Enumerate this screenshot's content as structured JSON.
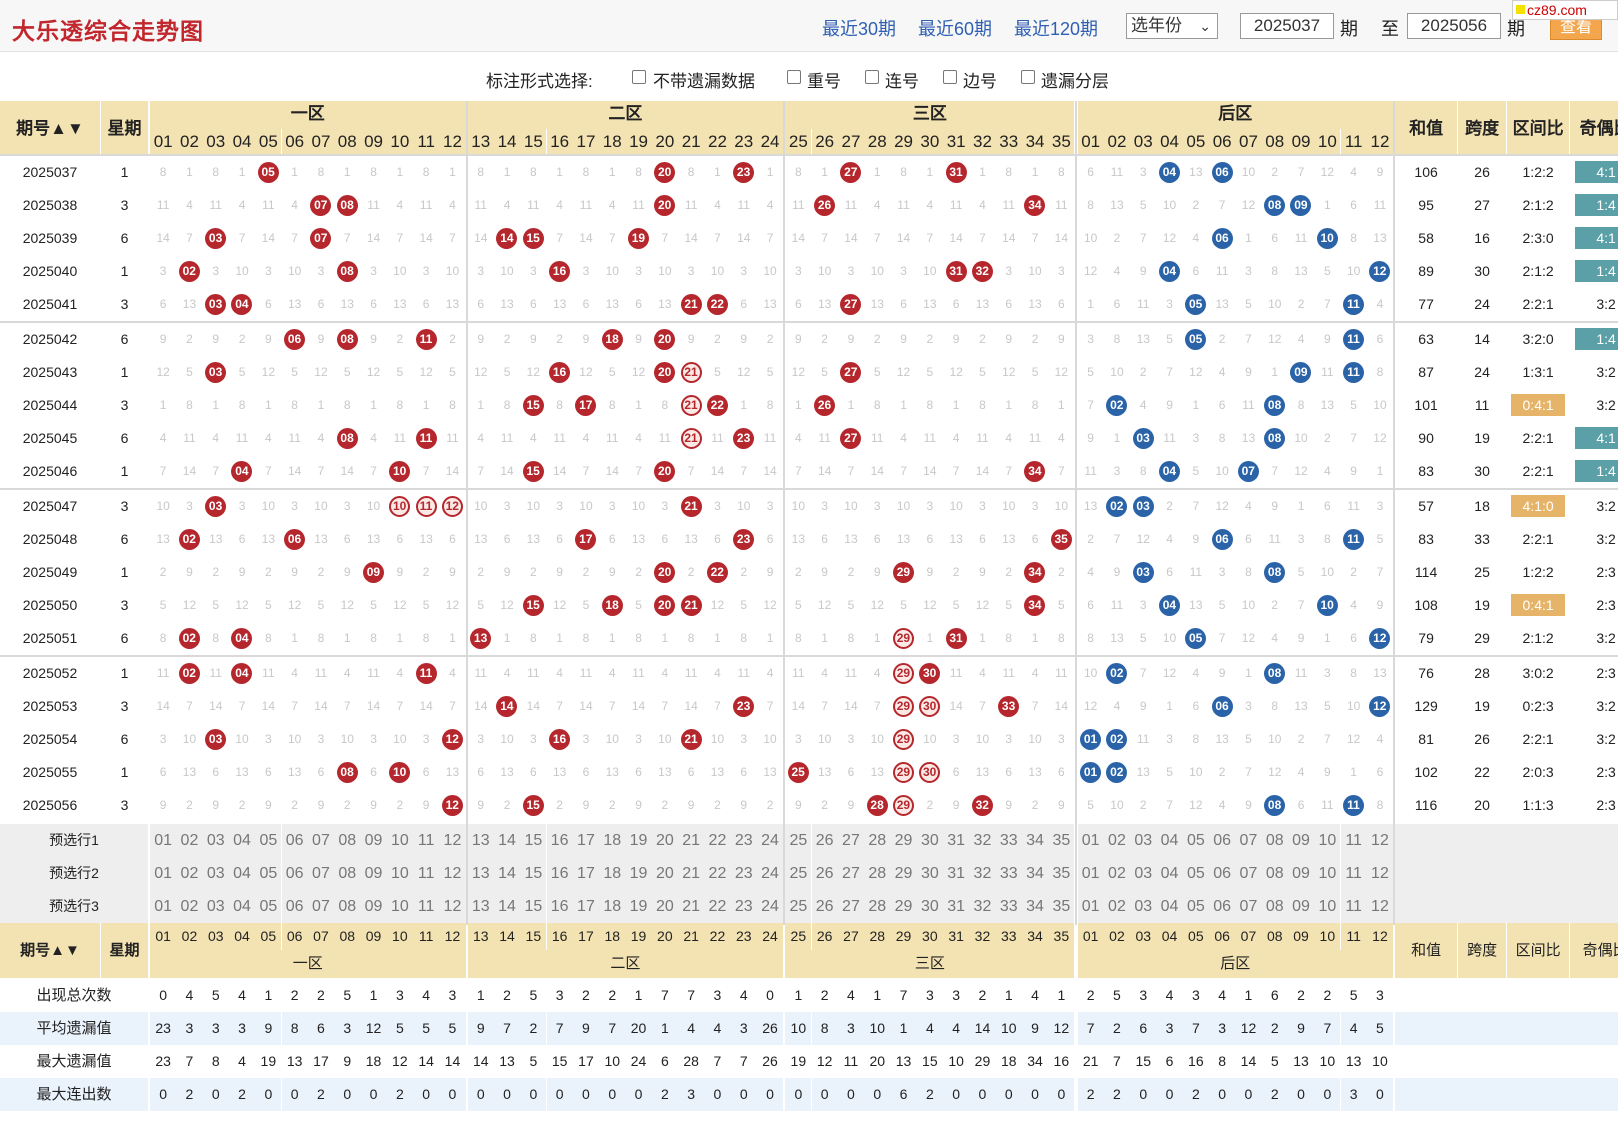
{
  "app": {
    "title": "大乐透综合走势图",
    "links": [
      "最近30期",
      "最近60期",
      "最近120期"
    ],
    "year_select": "选年份",
    "period_from": "2025037",
    "period_label_1": "期",
    "to_label": "至",
    "period_to": "2025056",
    "period_label_2": "期",
    "query": "查看",
    "watermark": "cz89.com"
  },
  "options": {
    "label": "标注形式选择:",
    "items": [
      "不带遗漏数据",
      "重号",
      "连号",
      "边号",
      "遗漏分层"
    ]
  },
  "header": {
    "period": "期号",
    "week": "星期",
    "zones": [
      "一区",
      "二区",
      "三区",
      "后区"
    ],
    "sum": "和值",
    "span": "跨度",
    "ratio": "区间比",
    "oddeven": "奇偶比"
  },
  "front_numbers": [
    "01",
    "02",
    "03",
    "04",
    "05",
    "06",
    "07",
    "08",
    "09",
    "10",
    "11",
    "12",
    "13",
    "14",
    "15",
    "16",
    "17",
    "18",
    "19",
    "20",
    "21",
    "22",
    "23",
    "24",
    "25",
    "26",
    "27",
    "28",
    "29",
    "30",
    "31",
    "32",
    "33",
    "34",
    "35"
  ],
  "back_numbers": [
    "01",
    "02",
    "03",
    "04",
    "05",
    "06",
    "07",
    "08",
    "09",
    "10",
    "11",
    "12"
  ],
  "rows": [
    {
      "period": "2025037",
      "week": "1",
      "sum": "106",
      "span": "26",
      "ratio": "1:2:2",
      "oe": "4:1",
      "oe_hl": true,
      "ratio_hl": false,
      "front": [
        5,
        20,
        23,
        27,
        31
      ],
      "back": [
        4,
        6
      ],
      "ring": []
    },
    {
      "period": "2025038",
      "week": "3",
      "sum": "95",
      "span": "27",
      "ratio": "2:1:2",
      "oe": "1:4",
      "oe_hl": true,
      "ratio_hl": false,
      "front": [
        7,
        8,
        20,
        26,
        34
      ],
      "back": [
        8,
        9
      ],
      "ring": []
    },
    {
      "period": "2025039",
      "week": "6",
      "sum": "58",
      "span": "16",
      "ratio": "2:3:0",
      "oe": "4:1",
      "oe_hl": true,
      "ratio_hl": false,
      "front": [
        3,
        7,
        14,
        15,
        19
      ],
      "back": [
        6,
        10
      ],
      "ring": []
    },
    {
      "period": "2025040",
      "week": "1",
      "sum": "89",
      "span": "30",
      "ratio": "2:1:2",
      "oe": "1:4",
      "oe_hl": true,
      "ratio_hl": false,
      "front": [
        2,
        8,
        16,
        31,
        32
      ],
      "back": [
        4,
        12
      ],
      "ring": []
    },
    {
      "period": "2025041",
      "week": "3",
      "sum": "77",
      "span": "24",
      "ratio": "2:2:1",
      "oe": "3:2",
      "oe_hl": false,
      "ratio_hl": false,
      "front": [
        3,
        4,
        21,
        22,
        27
      ],
      "back": [
        5,
        11
      ],
      "ring": []
    },
    {
      "period": "2025042",
      "week": "6",
      "sum": "63",
      "span": "14",
      "ratio": "3:2:0",
      "oe": "1:4",
      "oe_hl": true,
      "ratio_hl": false,
      "front": [
        6,
        8,
        11,
        18,
        20
      ],
      "back": [
        5,
        11
      ],
      "ring": []
    },
    {
      "period": "2025043",
      "week": "1",
      "sum": "87",
      "span": "24",
      "ratio": "1:3:1",
      "oe": "3:2",
      "oe_hl": false,
      "ratio_hl": false,
      "front": [
        3,
        16,
        20,
        21,
        27
      ],
      "back": [
        9,
        11
      ],
      "ring": [
        21
      ]
    },
    {
      "period": "2025044",
      "week": "3",
      "sum": "101",
      "span": "11",
      "ratio": "0:4:1",
      "oe": "3:2",
      "oe_hl": false,
      "ratio_hl": true,
      "front": [
        15,
        17,
        21,
        22,
        26
      ],
      "back": [
        2,
        8
      ],
      "ring": [
        21
      ]
    },
    {
      "period": "2025045",
      "week": "6",
      "sum": "90",
      "span": "19",
      "ratio": "2:2:1",
      "oe": "4:1",
      "oe_hl": true,
      "ratio_hl": false,
      "front": [
        8,
        11,
        21,
        23,
        27
      ],
      "back": [
        3,
        8
      ],
      "ring": [
        21
      ]
    },
    {
      "period": "2025046",
      "week": "1",
      "sum": "83",
      "span": "30",
      "ratio": "2:2:1",
      "oe": "1:4",
      "oe_hl": true,
      "ratio_hl": false,
      "front": [
        4,
        10,
        15,
        20,
        34
      ],
      "back": [
        4,
        7
      ],
      "ring": []
    },
    {
      "period": "2025047",
      "week": "3",
      "sum": "57",
      "span": "18",
      "ratio": "4:1:0",
      "oe": "3:2",
      "oe_hl": false,
      "ratio_hl": true,
      "front": [
        3,
        10,
        11,
        12,
        21
      ],
      "back": [
        2,
        3
      ],
      "ring": [
        10,
        11,
        12
      ]
    },
    {
      "period": "2025048",
      "week": "6",
      "sum": "83",
      "span": "33",
      "ratio": "2:2:1",
      "oe": "3:2",
      "oe_hl": false,
      "ratio_hl": false,
      "front": [
        2,
        6,
        17,
        23,
        35
      ],
      "back": [
        6,
        11
      ],
      "ring": []
    },
    {
      "period": "2025049",
      "week": "1",
      "sum": "114",
      "span": "25",
      "ratio": "1:2:2",
      "oe": "2:3",
      "oe_hl": false,
      "ratio_hl": false,
      "front": [
        9,
        20,
        22,
        29,
        34
      ],
      "back": [
        3,
        8
      ],
      "ring": []
    },
    {
      "period": "2025050",
      "week": "3",
      "sum": "108",
      "span": "19",
      "ratio": "0:4:1",
      "oe": "2:3",
      "oe_hl": false,
      "ratio_hl": true,
      "front": [
        15,
        18,
        20,
        21,
        34
      ],
      "back": [
        4,
        10
      ],
      "ring": []
    },
    {
      "period": "2025051",
      "week": "6",
      "sum": "79",
      "span": "29",
      "ratio": "2:1:2",
      "oe": "3:2",
      "oe_hl": false,
      "ratio_hl": false,
      "front": [
        2,
        4,
        13,
        29,
        31
      ],
      "back": [
        5,
        12
      ],
      "ring": [
        29
      ]
    },
    {
      "period": "2025052",
      "week": "1",
      "sum": "76",
      "span": "28",
      "ratio": "3:0:2",
      "oe": "2:3",
      "oe_hl": false,
      "ratio_hl": false,
      "front": [
        2,
        4,
        11,
        29,
        30
      ],
      "back": [
        2,
        8
      ],
      "ring": [
        29
      ]
    },
    {
      "period": "2025053",
      "week": "3",
      "sum": "129",
      "span": "19",
      "ratio": "0:2:3",
      "oe": "3:2",
      "oe_hl": false,
      "ratio_hl": false,
      "front": [
        14,
        23,
        29,
        30,
        33
      ],
      "back": [
        6,
        12
      ],
      "ring": [
        29,
        30
      ]
    },
    {
      "period": "2025054",
      "week": "6",
      "sum": "81",
      "span": "26",
      "ratio": "2:2:1",
      "oe": "3:2",
      "oe_hl": false,
      "ratio_hl": false,
      "front": [
        3,
        12,
        16,
        21,
        29
      ],
      "back": [
        1,
        2
      ],
      "ring": [
        29
      ]
    },
    {
      "period": "2025055",
      "week": "1",
      "sum": "102",
      "span": "22",
      "ratio": "2:0:3",
      "oe": "2:3",
      "oe_hl": false,
      "ratio_hl": false,
      "front": [
        8,
        10,
        25,
        29,
        30
      ],
      "back": [
        1,
        2
      ],
      "ring": [
        29,
        30
      ]
    },
    {
      "period": "2025056",
      "week": "3",
      "sum": "116",
      "span": "20",
      "ratio": "1:1:3",
      "oe": "2:3",
      "oe_hl": false,
      "ratio_hl": false,
      "front": [
        12,
        15,
        28,
        29,
        32
      ],
      "back": [
        8,
        11
      ],
      "ring": [
        29
      ]
    }
  ],
  "preselect": [
    "预选行1",
    "预选行2",
    "预选行3"
  ],
  "stats": {
    "labels": [
      "出现总次数",
      "平均遗漏值",
      "最大遗漏值",
      "最大连出数"
    ],
    "total": [
      "0",
      "4",
      "5",
      "4",
      "1",
      "2",
      "2",
      "5",
      "1",
      "3",
      "4",
      "3",
      "1",
      "2",
      "5",
      "3",
      "2",
      "2",
      "1",
      "7",
      "7",
      "3",
      "4",
      "0",
      "1",
      "2",
      "4",
      "1",
      "7",
      "3",
      "3",
      "2",
      "1",
      "4",
      "1",
      "2",
      "5",
      "3",
      "4",
      "3",
      "4",
      "1",
      "6",
      "2",
      "2",
      "5",
      "3"
    ],
    "avg": [
      "23",
      "3",
      "3",
      "3",
      "9",
      "8",
      "6",
      "3",
      "12",
      "5",
      "5",
      "5",
      "9",
      "7",
      "2",
      "7",
      "9",
      "7",
      "20",
      "1",
      "4",
      "4",
      "3",
      "26",
      "10",
      "8",
      "3",
      "10",
      "1",
      "4",
      "4",
      "14",
      "10",
      "9",
      "12",
      "7",
      "2",
      "6",
      "3",
      "7",
      "3",
      "12",
      "2",
      "9",
      "7",
      "4",
      "5"
    ],
    "max": [
      "23",
      "7",
      "8",
      "4",
      "19",
      "13",
      "17",
      "9",
      "18",
      "12",
      "14",
      "14",
      "14",
      "13",
      "5",
      "15",
      "17",
      "10",
      "24",
      "6",
      "28",
      "7",
      "7",
      "26",
      "19",
      "12",
      "11",
      "20",
      "13",
      "15",
      "10",
      "29",
      "18",
      "34",
      "16",
      "21",
      "7",
      "15",
      "6",
      "16",
      "8",
      "14",
      "5",
      "13",
      "10",
      "13",
      "10"
    ],
    "streak": [
      "0",
      "2",
      "0",
      "2",
      "0",
      "0",
      "2",
      "0",
      "0",
      "2",
      "0",
      "0",
      "0",
      "0",
      "0",
      "0",
      "0",
      "0",
      "0",
      "2",
      "3",
      "0",
      "0",
      "0",
      "0",
      "0",
      "0",
      "0",
      "6",
      "2",
      "0",
      "0",
      "0",
      "0",
      "0",
      "2",
      "2",
      "0",
      "0",
      "2",
      "0",
      "0",
      "2",
      "0",
      "0",
      "3",
      "0"
    ]
  },
  "colors": {
    "header_bg": "#f3e3b3",
    "red_ball": "#b5272d",
    "blue_ball": "#2a63a8",
    "oddeven_green": "#5ba0a7",
    "ratio_orange": "#e6b468"
  }
}
